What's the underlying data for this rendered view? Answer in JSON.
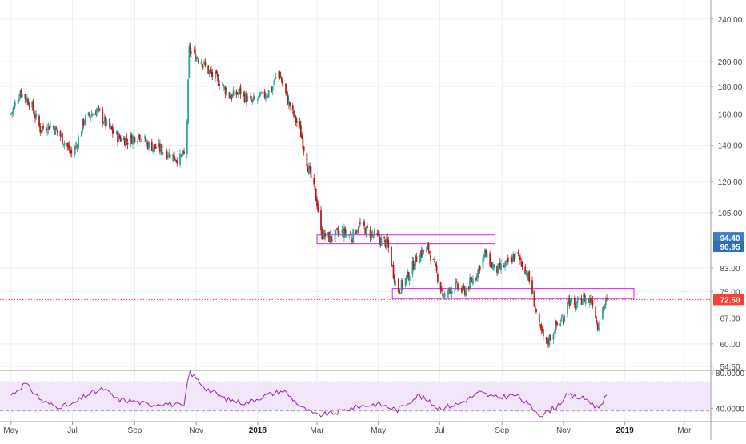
{
  "colors": {
    "up": "#26a69a",
    "down": "#b71c1c",
    "grid": "#eeeef3",
    "axis_text": "#4a4a4a",
    "zone": "#e040fb",
    "rsi_line": "#9c27b0",
    "rsi_band": "#f2e6fb",
    "last_price_label": "#f44336",
    "level_label_1": "#3d7fc4",
    "level_label_2": "#2e70b8"
  },
  "chart_data": [
    {
      "type": "candlestick",
      "scale": "log",
      "ylim": [
        54.5,
        250
      ],
      "y_ticks": [
        "240.00",
        "200.00",
        "180.00",
        "160.00",
        "140.00",
        "120.00",
        "105.00",
        "94.40",
        "90.95",
        "83.00",
        "75.00",
        "72.50",
        "67.00",
        "60.00",
        "54.50"
      ],
      "y_tick_values": [
        240,
        200,
        180,
        160,
        140,
        120,
        105,
        94.4,
        90.95,
        83,
        75,
        72.5,
        67,
        60,
        54.5
      ],
      "x_ticks": [
        "May",
        "Jul",
        "Sep",
        "Nov",
        "2018",
        "Mar",
        "May",
        "Jul",
        "Sep",
        "Nov",
        "2019",
        "Mar"
      ],
      "bold_x_ticks": [
        "2018",
        "2019"
      ],
      "price_labels": [
        {
          "value": 94.4,
          "text": "94.40",
          "color_key": "level_label_1"
        },
        {
          "value": 90.95,
          "text": "90.95",
          "color_key": "level_label_2"
        },
        {
          "value": 72.5,
          "text": "72.50",
          "color_key": "last_price_label"
        }
      ],
      "last_price": 72.5,
      "zones": [
        {
          "start": "2018-03-01",
          "end": "2018-08-25",
          "low": 92,
          "high": 95.5
        },
        {
          "start": "2018-05-15",
          "end": "2019-01-10",
          "low": 72.8,
          "high": 76
        }
      ],
      "start_date": "2017-05-01",
      "end_date": "2018-12-15",
      "path": [
        [
          "2017-05-01",
          160
        ],
        [
          "2017-05-10",
          176
        ],
        [
          "2017-05-20",
          168
        ],
        [
          "2017-05-30",
          150
        ],
        [
          "2017-06-10",
          153
        ],
        [
          "2017-06-20",
          145
        ],
        [
          "2017-06-30",
          135
        ],
        [
          "2017-07-05",
          140
        ],
        [
          "2017-07-12",
          155
        ],
        [
          "2017-07-25",
          163
        ],
        [
          "2017-08-05",
          152
        ],
        [
          "2017-08-15",
          145
        ],
        [
          "2017-08-25",
          143
        ],
        [
          "2017-09-05",
          147
        ],
        [
          "2017-09-15",
          140
        ],
        [
          "2017-09-25",
          138
        ],
        [
          "2017-10-05",
          135
        ],
        [
          "2017-10-15",
          132
        ],
        [
          "2017-10-22",
          135
        ],
        [
          "2017-10-25",
          210
        ],
        [
          "2017-11-05",
          202
        ],
        [
          "2017-11-15",
          190
        ],
        [
          "2017-11-25",
          183
        ],
        [
          "2017-12-05",
          172
        ],
        [
          "2017-12-15",
          176
        ],
        [
          "2017-12-25",
          168
        ],
        [
          "2018-01-05",
          172
        ],
        [
          "2018-01-15",
          178
        ],
        [
          "2018-01-22",
          192
        ],
        [
          "2018-01-27",
          178
        ],
        [
          "2018-02-05",
          160
        ],
        [
          "2018-02-12",
          150
        ],
        [
          "2018-02-20",
          128
        ],
        [
          "2018-03-01",
          110
        ],
        [
          "2018-03-05",
          96
        ],
        [
          "2018-03-15",
          94
        ],
        [
          "2018-03-25",
          97
        ],
        [
          "2018-04-05",
          95
        ],
        [
          "2018-04-12",
          100
        ],
        [
          "2018-04-20",
          97
        ],
        [
          "2018-05-01",
          94
        ],
        [
          "2018-05-10",
          92
        ],
        [
          "2018-05-20",
          75
        ],
        [
          "2018-05-30",
          80
        ],
        [
          "2018-06-10",
          88
        ],
        [
          "2018-06-20",
          90
        ],
        [
          "2018-06-30",
          79
        ],
        [
          "2018-07-05",
          73
        ],
        [
          "2018-07-15",
          77
        ],
        [
          "2018-07-25",
          75
        ],
        [
          "2018-08-05",
          80
        ],
        [
          "2018-08-15",
          88
        ],
        [
          "2018-08-25",
          82
        ],
        [
          "2018-09-05",
          84
        ],
        [
          "2018-09-15",
          88
        ],
        [
          "2018-09-25",
          82
        ],
        [
          "2018-10-01",
          75
        ],
        [
          "2018-10-08",
          64
        ],
        [
          "2018-10-15",
          60
        ],
        [
          "2018-10-25",
          65
        ],
        [
          "2018-11-01",
          67
        ],
        [
          "2018-11-05",
          73
        ],
        [
          "2018-11-12",
          70
        ],
        [
          "2018-11-20",
          73
        ],
        [
          "2018-11-30",
          72
        ],
        [
          "2018-12-05",
          65
        ],
        [
          "2018-12-10",
          70
        ],
        [
          "2018-12-15",
          72.5
        ]
      ]
    },
    {
      "type": "line",
      "name": "",
      "ylim": [
        30,
        80
      ],
      "y_ticks": [
        "80.0000",
        "40.0000"
      ],
      "y_tick_values": [
        80,
        40
      ],
      "band": [
        37,
        70
      ],
      "path": [
        [
          "2017-05-01",
          55
        ],
        [
          "2017-05-15",
          68
        ],
        [
          "2017-06-01",
          48
        ],
        [
          "2017-06-15",
          42
        ],
        [
          "2017-07-01",
          44
        ],
        [
          "2017-07-15",
          55
        ],
        [
          "2017-08-01",
          62
        ],
        [
          "2017-08-15",
          50
        ],
        [
          "2017-09-01",
          48
        ],
        [
          "2017-09-15",
          44
        ],
        [
          "2017-10-01",
          46
        ],
        [
          "2017-10-20",
          42
        ],
        [
          "2017-10-25",
          82
        ],
        [
          "2017-11-10",
          63
        ],
        [
          "2017-12-01",
          50
        ],
        [
          "2017-12-20",
          46
        ],
        [
          "2018-01-10",
          55
        ],
        [
          "2018-01-27",
          60
        ],
        [
          "2018-02-15",
          40
        ],
        [
          "2018-03-01",
          32
        ],
        [
          "2018-03-20",
          35
        ],
        [
          "2018-04-10",
          42
        ],
        [
          "2018-05-01",
          45
        ],
        [
          "2018-05-20",
          38
        ],
        [
          "2018-06-10",
          55
        ],
        [
          "2018-06-30",
          40
        ],
        [
          "2018-07-20",
          45
        ],
        [
          "2018-08-10",
          58
        ],
        [
          "2018-08-25",
          52
        ],
        [
          "2018-09-15",
          55
        ],
        [
          "2018-10-10",
          32
        ],
        [
          "2018-10-25",
          42
        ],
        [
          "2018-11-05",
          55
        ],
        [
          "2018-11-25",
          50
        ],
        [
          "2018-12-05",
          40
        ],
        [
          "2018-12-15",
          56
        ]
      ]
    }
  ]
}
